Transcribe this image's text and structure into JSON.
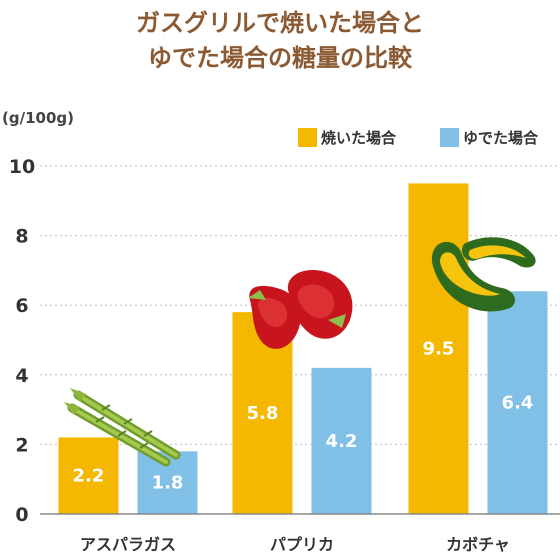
{
  "chart_data": {
    "type": "bar",
    "title_lines": [
      "ガスグリルで焼いた場合と",
      "ゆでた場合の糖量の比較"
    ],
    "unit_label": "(g/100g)",
    "categories": [
      "アスパラガス",
      "パプリカ",
      "カボチャ"
    ],
    "series": [
      {
        "name": "焼いた場合",
        "values": [
          2.2,
          5.8,
          9.5
        ],
        "color": "#f5b800"
      },
      {
        "name": "ゆでた場合",
        "values": [
          1.8,
          4.2,
          6.4
        ],
        "color": "#80bfe6"
      }
    ],
    "ylim": [
      0,
      10
    ],
    "yticks": [
      0,
      2,
      4,
      6,
      8,
      10
    ],
    "grid": true,
    "legend_position": "top-right",
    "value_labels_shown": true,
    "icons": [
      "asparagus-icon",
      "red-paprika-icon",
      "kabocha-slice-icon"
    ]
  }
}
